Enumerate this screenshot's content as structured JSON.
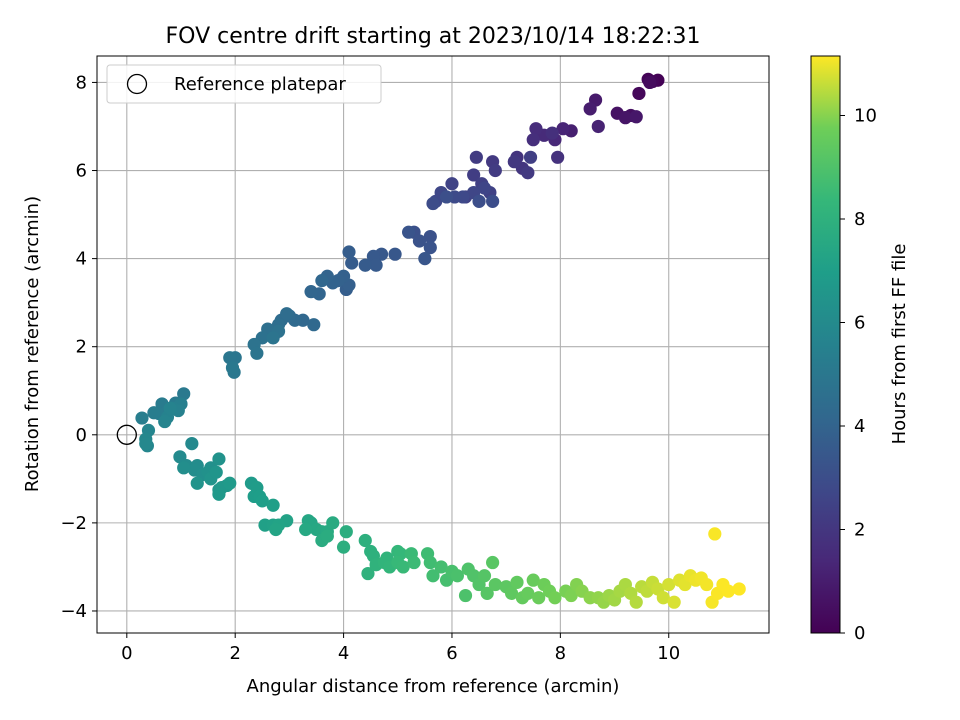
{
  "chart_data": {
    "type": "scatter",
    "title": "FOV centre drift starting at 2023/10/14 18:22:31",
    "xlabel": "Angular distance from reference (arcmin)",
    "ylabel": "Rotation from reference (arcmin)",
    "xlim": [
      -0.55,
      11.85
    ],
    "ylim": [
      -4.5,
      8.6
    ],
    "xticks": [
      0,
      2,
      4,
      6,
      8,
      10
    ],
    "yticks": [
      -4,
      -2,
      0,
      2,
      4,
      6,
      8
    ],
    "grid": true,
    "legend": {
      "location": "upper-left",
      "entries": [
        {
          "label": "Reference platepar",
          "marker": "open-circle"
        }
      ]
    },
    "reference_point": {
      "x": 0,
      "y": 0
    },
    "colorbar": {
      "label": "Hours from first FF file",
      "colormap": "viridis",
      "range": [
        0,
        11.15
      ],
      "ticks": [
        0,
        2,
        4,
        6,
        8,
        10
      ]
    },
    "points_columns": [
      "x",
      "y",
      "hours"
    ],
    "points": [
      [
        9.8,
        8.05,
        0.05
      ],
      [
        9.62,
        8.07,
        0.1
      ],
      [
        9.7,
        8.02,
        0.15
      ],
      [
        9.45,
        7.75,
        0.25
      ],
      [
        9.65,
        8.0,
        0.35
      ],
      [
        9.3,
        7.25,
        0.5
      ],
      [
        9.05,
        7.3,
        0.6
      ],
      [
        9.2,
        7.2,
        0.7
      ],
      [
        9.4,
        7.22,
        0.8
      ],
      [
        8.65,
        7.6,
        0.9
      ],
      [
        8.55,
        7.4,
        1.0
      ],
      [
        8.2,
        6.9,
        1.1
      ],
      [
        8.7,
        7.0,
        1.2
      ],
      [
        8.05,
        6.95,
        1.3
      ],
      [
        7.9,
        6.7,
        1.4
      ],
      [
        7.7,
        6.8,
        1.5
      ],
      [
        7.55,
        6.95,
        1.6
      ],
      [
        7.5,
        6.7,
        1.7
      ],
      [
        7.85,
        6.85,
        1.75
      ],
      [
        7.95,
        6.3,
        1.8
      ],
      [
        7.2,
        6.3,
        1.9
      ],
      [
        7.3,
        6.05,
        2.0
      ],
      [
        7.15,
        6.2,
        2.05
      ],
      [
        6.75,
        6.2,
        2.1
      ],
      [
        7.4,
        5.95,
        2.15
      ],
      [
        6.8,
        6.0,
        2.2
      ],
      [
        6.45,
        6.3,
        2.25
      ],
      [
        6.4,
        5.9,
        2.3
      ],
      [
        7.45,
        6.3,
        2.35
      ],
      [
        6.55,
        5.7,
        2.4
      ],
      [
        6.7,
        5.5,
        2.45
      ],
      [
        6.25,
        5.4,
        2.5
      ],
      [
        6.0,
        5.7,
        2.55
      ],
      [
        6.6,
        5.6,
        2.6
      ],
      [
        6.4,
        5.5,
        2.65
      ],
      [
        5.8,
        5.5,
        2.7
      ],
      [
        5.7,
        5.3,
        2.75
      ],
      [
        6.2,
        5.4,
        2.8
      ],
      [
        6.05,
        5.4,
        2.85
      ],
      [
        5.65,
        5.25,
        2.9
      ],
      [
        6.75,
        5.3,
        2.95
      ],
      [
        6.5,
        5.3,
        3.0
      ],
      [
        5.9,
        5.4,
        3.05
      ],
      [
        5.3,
        4.6,
        3.1
      ],
      [
        5.6,
        4.5,
        3.15
      ],
      [
        5.4,
        4.4,
        3.2
      ],
      [
        5.6,
        4.25,
        3.25
      ],
      [
        5.2,
        4.6,
        3.3
      ],
      [
        5.5,
        4.0,
        3.35
      ],
      [
        4.95,
        4.1,
        3.4
      ],
      [
        4.7,
        4.1,
        3.45
      ],
      [
        4.55,
        4.05,
        3.5
      ],
      [
        4.6,
        3.85,
        3.55
      ],
      [
        4.4,
        3.85,
        3.6
      ],
      [
        4.15,
        3.9,
        3.65
      ],
      [
        4.1,
        4.15,
        3.7
      ],
      [
        4.05,
        3.3,
        3.75
      ],
      [
        4.1,
        3.4,
        3.8
      ],
      [
        4.0,
        3.6,
        3.85
      ],
      [
        3.9,
        3.5,
        3.9
      ],
      [
        3.8,
        3.45,
        3.95
      ],
      [
        3.7,
        3.6,
        4.0
      ],
      [
        3.55,
        3.2,
        4.05
      ],
      [
        3.4,
        3.25,
        4.1
      ],
      [
        3.6,
        3.5,
        4.15
      ],
      [
        3.25,
        2.6,
        4.2
      ],
      [
        3.45,
        2.5,
        4.25
      ],
      [
        3.1,
        2.6,
        4.3
      ],
      [
        3.0,
        2.7,
        4.35
      ],
      [
        2.85,
        2.6,
        4.4
      ],
      [
        2.95,
        2.75,
        4.45
      ],
      [
        2.8,
        2.5,
        4.5
      ],
      [
        2.65,
        2.3,
        4.55
      ],
      [
        2.6,
        2.4,
        4.6
      ],
      [
        2.5,
        2.2,
        4.65
      ],
      [
        2.8,
        2.35,
        4.7
      ],
      [
        2.35,
        2.05,
        4.75
      ],
      [
        2.4,
        1.85,
        4.8
      ],
      [
        2.7,
        2.2,
        4.85
      ],
      [
        2.0,
        1.75,
        4.9
      ],
      [
        1.9,
        1.75,
        4.95
      ],
      [
        1.98,
        1.42,
        5.0
      ],
      [
        1.95,
        1.52,
        5.05
      ],
      [
        1.05,
        0.93,
        5.1
      ],
      [
        0.9,
        0.72,
        5.15
      ],
      [
        0.65,
        0.7,
        5.2
      ],
      [
        0.6,
        0.48,
        5.25
      ],
      [
        0.5,
        0.5,
        5.3
      ],
      [
        0.28,
        0.38,
        5.35
      ],
      [
        1.0,
        0.7,
        5.4
      ],
      [
        0.85,
        0.6,
        5.45
      ],
      [
        0.95,
        0.55,
        5.5
      ],
      [
        0.75,
        0.4,
        5.55
      ],
      [
        0.8,
        0.6,
        5.6
      ],
      [
        0.7,
        0.3,
        5.65
      ],
      [
        0.4,
        0.1,
        5.7
      ],
      [
        0.38,
        -0.25,
        5.75
      ],
      [
        0.35,
        -0.1,
        5.8
      ],
      [
        0.35,
        -0.2,
        5.85
      ],
      [
        1.2,
        -0.2,
        5.9
      ],
      [
        0.98,
        -0.5,
        5.95
      ],
      [
        1.1,
        -0.7,
        6.0
      ],
      [
        1.3,
        -0.7,
        6.05
      ],
      [
        1.25,
        -0.8,
        6.1
      ],
      [
        1.05,
        -0.75,
        6.15
      ],
      [
        1.4,
        -0.9,
        6.2
      ],
      [
        1.55,
        -0.75,
        6.25
      ],
      [
        1.5,
        -0.85,
        6.3
      ],
      [
        1.7,
        -0.55,
        6.35
      ],
      [
        1.3,
        -1.1,
        6.4
      ],
      [
        1.55,
        -1.0,
        6.45
      ],
      [
        1.65,
        -0.85,
        6.5
      ],
      [
        1.7,
        -1.25,
        6.55
      ],
      [
        1.85,
        -1.15,
        6.6
      ],
      [
        1.75,
        -1.2,
        6.65
      ],
      [
        1.7,
        -1.35,
        6.7
      ],
      [
        1.9,
        -1.1,
        6.75
      ],
      [
        2.3,
        -1.1,
        6.8
      ],
      [
        2.4,
        -1.2,
        6.85
      ],
      [
        2.35,
        -1.4,
        6.9
      ],
      [
        2.45,
        -1.4,
        6.95
      ],
      [
        2.5,
        -1.5,
        7.0
      ],
      [
        2.7,
        -1.6,
        7.05
      ],
      [
        2.55,
        -2.05,
        7.1
      ],
      [
        2.7,
        -2.05,
        7.15
      ],
      [
        2.95,
        -1.95,
        7.2
      ],
      [
        2.8,
        -2.05,
        7.25
      ],
      [
        2.75,
        -2.15,
        7.3
      ],
      [
        3.4,
        -2.0,
        7.35
      ],
      [
        3.35,
        -1.95,
        7.4
      ],
      [
        3.5,
        -2.15,
        7.45
      ],
      [
        3.3,
        -2.15,
        7.5
      ],
      [
        3.6,
        -2.2,
        7.55
      ],
      [
        3.7,
        -2.2,
        7.6
      ],
      [
        3.8,
        -2.0,
        7.65
      ],
      [
        3.6,
        -2.4,
        7.7
      ],
      [
        3.7,
        -2.3,
        7.75
      ],
      [
        4.05,
        -2.2,
        7.8
      ],
      [
        4.0,
        -2.55,
        7.85
      ],
      [
        4.4,
        -2.4,
        7.9
      ],
      [
        4.5,
        -2.65,
        7.95
      ],
      [
        4.55,
        -2.75,
        8.0
      ],
      [
        4.45,
        -3.15,
        8.05
      ],
      [
        4.6,
        -2.95,
        8.1
      ],
      [
        4.8,
        -2.8,
        8.15
      ],
      [
        4.75,
        -2.9,
        8.2
      ],
      [
        4.85,
        -3.0,
        8.25
      ],
      [
        5.0,
        -2.65,
        8.3
      ],
      [
        5.05,
        -2.7,
        8.35
      ],
      [
        5.0,
        -2.9,
        8.4
      ],
      [
        5.1,
        -3.0,
        8.45
      ],
      [
        5.25,
        -2.7,
        8.5
      ],
      [
        5.3,
        -2.9,
        8.55
      ],
      [
        5.55,
        -2.7,
        8.6
      ],
      [
        5.6,
        -2.9,
        8.65
      ],
      [
        5.65,
        -3.2,
        8.7
      ],
      [
        5.8,
        -3.0,
        8.75
      ],
      [
        5.9,
        -3.3,
        8.8
      ],
      [
        6.0,
        -3.1,
        8.85
      ],
      [
        6.1,
        -3.2,
        8.9
      ],
      [
        6.25,
        -3.65,
        8.95
      ],
      [
        6.3,
        -3.05,
        9.0
      ],
      [
        6.4,
        -3.2,
        9.05
      ],
      [
        6.5,
        -3.4,
        9.1
      ],
      [
        6.6,
        -3.2,
        9.15
      ],
      [
        6.65,
        -3.6,
        9.2
      ],
      [
        6.75,
        -2.9,
        9.25
      ],
      [
        6.8,
        -3.4,
        9.3
      ],
      [
        7.0,
        -3.45,
        9.35
      ],
      [
        7.1,
        -3.6,
        9.4
      ],
      [
        7.2,
        -3.35,
        9.45
      ],
      [
        7.3,
        -3.7,
        9.5
      ],
      [
        7.4,
        -3.6,
        9.55
      ],
      [
        7.5,
        -3.3,
        9.6
      ],
      [
        7.6,
        -3.7,
        9.65
      ],
      [
        7.7,
        -3.4,
        9.7
      ],
      [
        7.8,
        -3.55,
        9.75
      ],
      [
        7.9,
        -3.7,
        9.8
      ],
      [
        8.1,
        -3.55,
        9.85
      ],
      [
        8.2,
        -3.65,
        9.9
      ],
      [
        8.3,
        -3.4,
        9.95
      ],
      [
        8.4,
        -3.55,
        10.0
      ],
      [
        8.55,
        -3.7,
        10.05
      ],
      [
        8.7,
        -3.7,
        10.1
      ],
      [
        8.8,
        -3.8,
        10.15
      ],
      [
        8.9,
        -3.65,
        10.2
      ],
      [
        9.0,
        -3.75,
        10.25
      ],
      [
        9.1,
        -3.55,
        10.3
      ],
      [
        9.2,
        -3.4,
        10.35
      ],
      [
        9.3,
        -3.6,
        10.4
      ],
      [
        9.4,
        -3.8,
        10.45
      ],
      [
        9.5,
        -3.45,
        10.5
      ],
      [
        9.6,
        -3.55,
        10.55
      ],
      [
        9.7,
        -3.35,
        10.6
      ],
      [
        9.8,
        -3.5,
        10.65
      ],
      [
        9.9,
        -3.7,
        10.7
      ],
      [
        10.0,
        -3.4,
        10.75
      ],
      [
        10.1,
        -3.8,
        10.8
      ],
      [
        10.2,
        -3.3,
        10.85
      ],
      [
        10.3,
        -3.4,
        10.9
      ],
      [
        10.4,
        -3.2,
        10.95
      ],
      [
        10.5,
        -3.3,
        11.0
      ],
      [
        10.6,
        -3.25,
        11.03
      ],
      [
        10.7,
        -3.4,
        11.05
      ],
      [
        10.8,
        -3.8,
        11.08
      ],
      [
        10.85,
        -2.25,
        11.1
      ],
      [
        10.9,
        -3.6,
        11.12
      ],
      [
        11.0,
        -3.4,
        11.13
      ],
      [
        11.1,
        -3.55,
        11.14
      ],
      [
        11.3,
        -3.5,
        11.15
      ]
    ]
  }
}
